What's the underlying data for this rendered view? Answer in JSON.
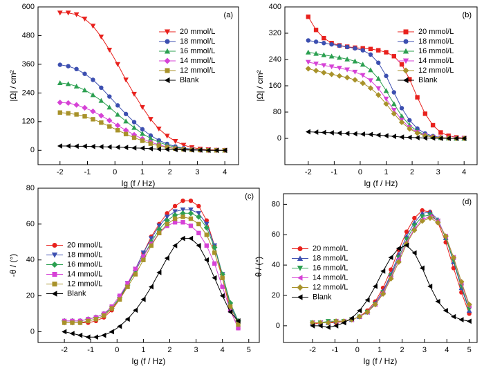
{
  "chart_data": [
    {
      "type": "line",
      "panel_label": "(a)",
      "x_label": "lg (f / Hz)",
      "y_label": "|Ω| / cm²",
      "legend": "upper right",
      "xlim": [
        -2.8,
        4.5
      ],
      "ylim": [
        -60,
        600
      ],
      "xticks": [
        -2,
        -1,
        0,
        1,
        2,
        3,
        4
      ],
      "yticks": [
        0,
        120,
        240,
        360,
        480,
        600
      ],
      "x": [
        -2,
        -1.7,
        -1.4,
        -1.1,
        -0.8,
        -0.5,
        -0.2,
        0.1,
        0.4,
        0.7,
        1.0,
        1.3,
        1.6,
        1.9,
        2.2,
        2.5,
        2.8,
        3.1,
        3.4,
        3.7,
        4.0
      ],
      "series": [
        {
          "name": "20 mmol/L",
          "color": "#e8211d",
          "marker": "tri-down",
          "values": [
            575,
            575,
            568,
            550,
            520,
            475,
            420,
            360,
            295,
            235,
            180,
            130,
            90,
            60,
            38,
            22,
            12,
            6,
            3,
            1,
            0
          ]
        },
        {
          "name": "18 mmol/L",
          "color": "#3c4fb0",
          "marker": "circle",
          "values": [
            358,
            352,
            340,
            320,
            295,
            262,
            225,
            188,
            152,
            118,
            88,
            62,
            42,
            27,
            16,
            9,
            5,
            2,
            1,
            0,
            0
          ]
        },
        {
          "name": "16 mmol/L",
          "color": "#2ca051",
          "marker": "tri-up",
          "values": [
            282,
            278,
            268,
            252,
            232,
            208,
            180,
            150,
            122,
            95,
            70,
            50,
            34,
            22,
            13,
            7,
            4,
            2,
            1,
            0,
            0
          ]
        },
        {
          "name": "14 mmol/L",
          "color": "#d642d6",
          "marker": "diamond",
          "values": [
            200,
            198,
            190,
            178,
            163,
            145,
            125,
            104,
            84,
            65,
            48,
            34,
            23,
            14,
            8,
            5,
            3,
            1,
            0,
            0,
            0
          ]
        },
        {
          "name": "12 mmol/L",
          "color": "#a8922a",
          "marker": "square",
          "values": [
            158,
            155,
            150,
            142,
            130,
            116,
            100,
            84,
            68,
            53,
            40,
            28,
            19,
            12,
            7,
            4,
            2,
            1,
            0,
            0,
            0
          ]
        },
        {
          "name": "Blank",
          "color": "#000000",
          "marker": "tri-left",
          "values": [
            18,
            18,
            17,
            17,
            16,
            15,
            14,
            13,
            12,
            10,
            9,
            7,
            5,
            4,
            3,
            2,
            1,
            1,
            0,
            0,
            0
          ]
        }
      ]
    },
    {
      "type": "line",
      "panel_label": "(b)",
      "x_label": "lg (f / Hz)",
      "y_label": "|Ω| / cm²",
      "legend": "upper right",
      "xlim": [
        -2.9,
        4.5
      ],
      "ylim": [
        -80,
        400
      ],
      "xticks": [
        -2,
        -1,
        0,
        1,
        2,
        3,
        4
      ],
      "yticks": [
        0,
        80,
        160,
        240,
        320,
        400
      ],
      "x": [
        -2,
        -1.7,
        -1.4,
        -1.1,
        -0.8,
        -0.5,
        -0.2,
        0.1,
        0.4,
        0.7,
        1.0,
        1.3,
        1.6,
        1.9,
        2.2,
        2.5,
        2.8,
        3.1,
        3.4,
        3.7,
        4.0
      ],
      "series": [
        {
          "name": "20 mmol/L",
          "color": "#e8211d",
          "marker": "square",
          "values": [
            370,
            330,
            305,
            290,
            283,
            279,
            276,
            274,
            272,
            268,
            262,
            250,
            225,
            180,
            125,
            75,
            40,
            18,
            8,
            3,
            1
          ]
        },
        {
          "name": "18 mmol/L",
          "color": "#3c4fb0",
          "marker": "circle",
          "values": [
            298,
            294,
            290,
            286,
            282,
            278,
            274,
            268,
            255,
            230,
            190,
            140,
            92,
            55,
            30,
            15,
            7,
            3,
            1,
            0,
            0
          ]
        },
        {
          "name": "16 mmol/L",
          "color": "#2ca051",
          "marker": "tri-up",
          "values": [
            262,
            258,
            254,
            250,
            246,
            241,
            235,
            225,
            208,
            182,
            145,
            105,
            68,
            40,
            22,
            11,
            5,
            2,
            1,
            0,
            0
          ]
        },
        {
          "name": "14 mmol/L",
          "color": "#d642d6",
          "marker": "tri-down",
          "values": [
            232,
            227,
            222,
            218,
            214,
            209,
            202,
            192,
            176,
            152,
            120,
            86,
            56,
            33,
            18,
            9,
            4,
            2,
            1,
            0,
            0
          ]
        },
        {
          "name": "12 mmol/L",
          "color": "#a8922a",
          "marker": "diamond",
          "values": [
            212,
            206,
            200,
            195,
            190,
            185,
            178,
            168,
            153,
            132,
            105,
            75,
            49,
            29,
            16,
            8,
            4,
            2,
            1,
            0,
            0
          ]
        },
        {
          "name": "Blank",
          "color": "#000000",
          "marker": "tri-left",
          "values": [
            20,
            19,
            18,
            17,
            16,
            15,
            14,
            13,
            12,
            10,
            8,
            6,
            4,
            3,
            2,
            1,
            1,
            0,
            0,
            0,
            0
          ]
        }
      ]
    },
    {
      "type": "line",
      "panel_label": "(c)",
      "x_label": "lg (f / Hz)",
      "y_label": "-θ / (°)",
      "legend": "center left",
      "xlim": [
        -3,
        5.4
      ],
      "ylim": [
        -6,
        80
      ],
      "xticks": [
        -2,
        -1,
        0,
        1,
        2,
        3,
        4,
        5
      ],
      "yticks": [
        0,
        20,
        40,
        60,
        80
      ],
      "x": [
        -2,
        -1.7,
        -1.4,
        -1.1,
        -0.8,
        -0.5,
        -0.2,
        0.1,
        0.4,
        0.7,
        1.0,
        1.3,
        1.6,
        1.9,
        2.2,
        2.5,
        2.8,
        3.1,
        3.4,
        3.7,
        4.0,
        4.3,
        4.6
      ],
      "series": [
        {
          "name": "20 mmol/L",
          "color": "#e8211d",
          "marker": "circle",
          "values": [
            5,
            5,
            5,
            5,
            6,
            8,
            12,
            18,
            26,
            35,
            44,
            53,
            60,
            66,
            70,
            73,
            73,
            70,
            62,
            48,
            30,
            12,
            2
          ]
        },
        {
          "name": "18 mmol/L",
          "color": "#3c4fb0",
          "marker": "tri-down",
          "values": [
            5,
            5,
            5,
            6,
            7,
            9,
            13,
            19,
            27,
            35,
            44,
            52,
            59,
            64,
            67,
            68,
            68,
            66,
            60,
            48,
            32,
            15,
            5
          ]
        },
        {
          "name": "16 mmol/L",
          "color": "#2ca051",
          "marker": "diamond",
          "values": [
            6,
            6,
            6,
            7,
            8,
            10,
            13,
            19,
            26,
            34,
            42,
            50,
            57,
            62,
            65,
            66,
            66,
            64,
            58,
            47,
            32,
            16,
            6
          ]
        },
        {
          "name": "14 mmol/L",
          "color": "#d642d6",
          "marker": "square",
          "values": [
            6,
            6,
            6,
            7,
            8,
            10,
            14,
            20,
            27,
            35,
            42,
            49,
            55,
            59,
            61,
            61,
            59,
            55,
            48,
            38,
            25,
            12,
            2
          ]
        },
        {
          "name": "12 mmol/L",
          "color": "#a8922a",
          "marker": "square",
          "values": [
            5,
            5,
            5,
            6,
            7,
            9,
            13,
            18,
            25,
            32,
            40,
            48,
            55,
            60,
            63,
            64,
            63,
            60,
            54,
            44,
            30,
            14,
            4
          ]
        },
        {
          "name": "Blank",
          "color": "#000000",
          "marker": "tri-left",
          "values": [
            0,
            -1,
            -2,
            -3,
            -3,
            -2,
            0,
            3,
            7,
            12,
            18,
            25,
            33,
            41,
            48,
            52,
            52,
            48,
            40,
            30,
            20,
            11,
            6
          ]
        }
      ]
    },
    {
      "type": "line",
      "panel_label": "(d)",
      "x_label": "lg (f / Hz)",
      "y_label": "-θ / (°)",
      "legend": "center left",
      "xlim": [
        -3.3,
        5.35
      ],
      "ylim": [
        -11,
        87
      ],
      "xticks": [
        -2,
        -1,
        0,
        1,
        2,
        3,
        4,
        5
      ],
      "yticks": [
        0,
        20,
        40,
        60,
        80
      ],
      "x": [
        -2,
        -1.65,
        -1.3,
        -0.95,
        -0.6,
        -0.25,
        0.1,
        0.45,
        0.8,
        1.15,
        1.5,
        1.85,
        2.2,
        2.55,
        2.9,
        3.25,
        3.6,
        3.95,
        4.3,
        4.65,
        5.0
      ],
      "series": [
        {
          "name": "20 mmol/L",
          "color": "#e8211d",
          "marker": "circle",
          "values": [
            1,
            2,
            2,
            2,
            3,
            4,
            6,
            10,
            16,
            25,
            37,
            50,
            62,
            71,
            76,
            75,
            68,
            55,
            38,
            22,
            8
          ]
        },
        {
          "name": "18 mmol/L",
          "color": "#3c4fb0",
          "marker": "tri-up",
          "values": [
            2,
            2,
            2,
            3,
            3,
            4,
            6,
            9,
            15,
            23,
            34,
            47,
            59,
            68,
            74,
            75,
            70,
            58,
            42,
            25,
            10
          ]
        },
        {
          "name": "16 mmol/L",
          "color": "#2ca051",
          "marker": "tri-down",
          "values": [
            2,
            2,
            3,
            3,
            3,
            4,
            6,
            9,
            14,
            22,
            33,
            45,
            57,
            66,
            72,
            73,
            69,
            58,
            43,
            26,
            11
          ]
        },
        {
          "name": "14 mmol/L",
          "color": "#d642d6",
          "marker": "tri-left",
          "values": [
            2,
            2,
            2,
            3,
            3,
            4,
            6,
            9,
            14,
            22,
            32,
            44,
            55,
            64,
            70,
            72,
            69,
            59,
            45,
            28,
            13
          ]
        },
        {
          "name": "12 mmol/L",
          "color": "#a8922a",
          "marker": "diamond",
          "values": [
            2,
            2,
            2,
            3,
            3,
            4,
            6,
            9,
            14,
            21,
            31,
            42,
            54,
            63,
            69,
            71,
            68,
            59,
            45,
            29,
            14
          ]
        },
        {
          "name": "Blank",
          "color": "#000000",
          "marker": "tri-left",
          "values": [
            0,
            0,
            -1,
            0,
            2,
            5,
            10,
            17,
            26,
            36,
            45,
            51,
            53,
            48,
            38,
            26,
            16,
            10,
            6,
            4,
            3
          ]
        }
      ]
    }
  ]
}
